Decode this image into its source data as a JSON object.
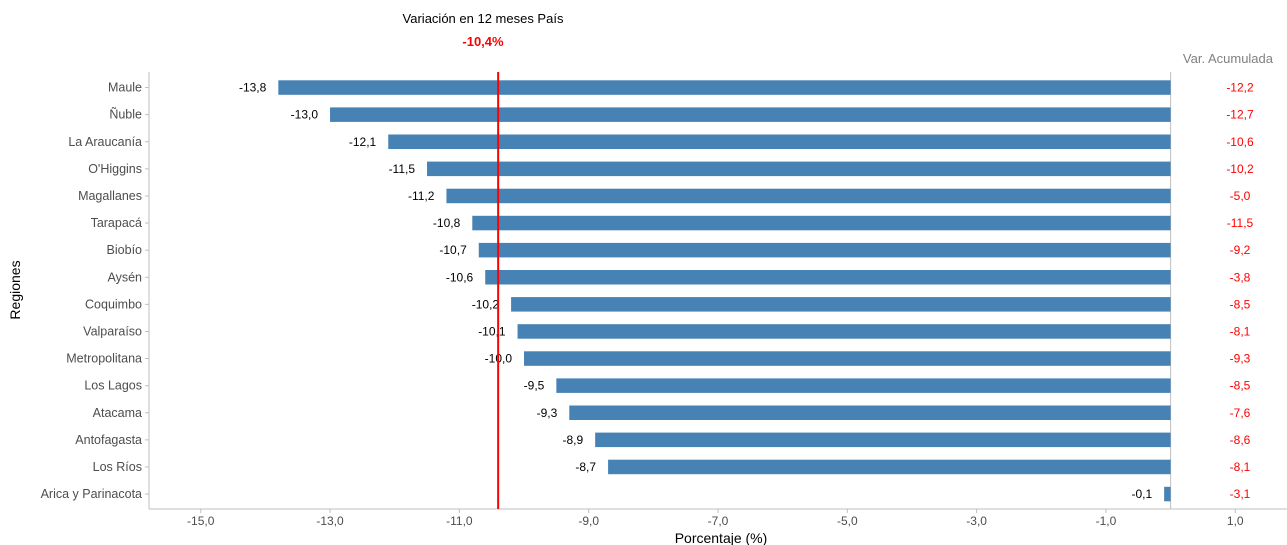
{
  "chart_data": {
    "type": "bar",
    "orientation": "horizontal",
    "title": "Variación en 12 meses País",
    "reference_value_label": "-10,4%",
    "reference_value": -10.4,
    "xlabel": "Porcentaje (%)",
    "ylabel": "Regiones",
    "right_header": "Var. Acumulada",
    "xlim": [
      -15.8,
      1.8
    ],
    "xticks": [
      {
        "value": -15,
        "label": "-15,0"
      },
      {
        "value": -13,
        "label": "-13,0"
      },
      {
        "value": -11,
        "label": "-11,0"
      },
      {
        "value": -9,
        "label": "-9,0"
      },
      {
        "value": -7,
        "label": "-7,0"
      },
      {
        "value": -5,
        "label": "-5,0"
      },
      {
        "value": -3,
        "label": "-3,0"
      },
      {
        "value": -1,
        "label": "-1,0"
      },
      {
        "value": 1,
        "label": "1,0"
      }
    ],
    "grid": false,
    "categories": [
      "Maule",
      "Ñuble",
      "La Araucanía",
      "O'Higgins",
      "Magallanes",
      "Tarapacá",
      "Biobío",
      "Aysén",
      "Coquimbo",
      "Valparaíso",
      "Metropolitana",
      "Los Lagos",
      "Atacama",
      "Antofagasta",
      "Los Ríos",
      "Arica y Parinacota"
    ],
    "values": [
      -13.8,
      -13.0,
      -12.1,
      -11.5,
      -11.2,
      -10.8,
      -10.7,
      -10.6,
      -10.2,
      -10.1,
      -10.0,
      -9.5,
      -9.3,
      -8.9,
      -8.7,
      -0.1
    ],
    "value_labels": [
      "-13,8",
      "-13,0",
      "-12,1",
      "-11,5",
      "-11,2",
      "-10,8",
      "-10,7",
      "-10,6",
      "-10,2",
      "-10,1",
      "-10,0",
      "-9,5",
      "-9,3",
      "-8,9",
      "-8,7",
      "-0,1"
    ],
    "accumulated_labels": [
      "-12,2",
      "-12,7",
      "-10,6",
      "-10,2",
      "-5,0",
      "-11,5",
      "-9,2",
      "-3,8",
      "-8,5",
      "-8,1",
      "-9,3",
      "-8,5",
      "-7,6",
      "-8,6",
      "-8,1",
      "-3,1"
    ],
    "colors": {
      "bar": "#4682b4",
      "reference_line": "#ff0000",
      "accumulated": "#ff0000",
      "right_header": "#808080",
      "axis": "#bfbfbf",
      "category_text": "#4d4d4d"
    }
  }
}
